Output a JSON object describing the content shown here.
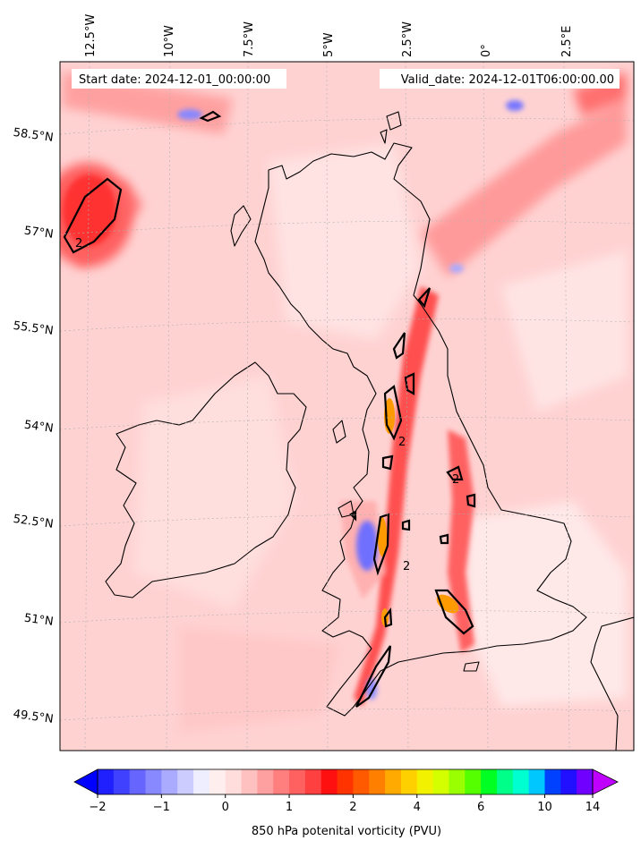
{
  "header": {
    "start_label": "Start date: 2024-12-01_00:00:00",
    "valid_label": "Valid_date: 2024-12-01T06:00:00.00"
  },
  "longitude_labels": [
    "12.5°W",
    "10°W",
    "7.5°W",
    "5°W",
    "2.5°W",
    "0°",
    "2.5°E"
  ],
  "latitude_labels": [
    "58.5°N",
    "57°N",
    "55.5°N",
    "54°N",
    "52.5°N",
    "51°N",
    "49.5°N"
  ],
  "contour_labels": [
    "2",
    "2",
    "2",
    "2"
  ],
  "colorbar": {
    "label": "850 hPa potenital vorticity (PVU)",
    "ticks": [
      "−2",
      "−1",
      "0",
      "1",
      "2",
      "4",
      "6",
      "10",
      "14"
    ],
    "colors": [
      "#0000ff",
      "#2020ff",
      "#4040ff",
      "#6666ff",
      "#8888ff",
      "#aaaaff",
      "#ccccff",
      "#eeeeff",
      "#ffeeee",
      "#ffdddd",
      "#ffc0c0",
      "#ffa0a0",
      "#ff7f7f",
      "#ff6060",
      "#ff4040",
      "#ff1010",
      "#ff3300",
      "#ff5a00",
      "#ff8000",
      "#ffaa00",
      "#ffd000",
      "#f2f200",
      "#d4ff00",
      "#9aff00",
      "#55ff00",
      "#00ff22",
      "#00ff88",
      "#00ffd0",
      "#00c8ff",
      "#0040ff",
      "#2010ff",
      "#7000ff",
      "#c000ff"
    ],
    "extend": "both"
  },
  "colors": {
    "background_field": "#ffd2d2",
    "coast": "#000000",
    "gridline": "#b0b0b0"
  }
}
